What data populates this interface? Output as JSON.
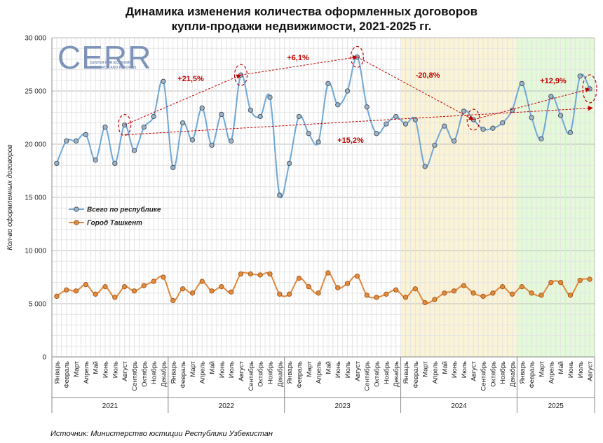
{
  "title_line1": "Динамика изменения количества оформленных договоров",
  "title_line2": "купли-продажи недвижимости, 2021-2025 гг.",
  "source": "Источник: Министерство юстиции Республики Узбекистан",
  "logo": {
    "text": "CERR",
    "subtitle_1": "CENTER FOR ECONOMIC",
    "subtitle_2": "RESEARCH AND REFORMS"
  },
  "colors": {
    "republic_line": "#6fa8d6",
    "republic_marker": "#9db3c4",
    "tashkent": "#e08a3c",
    "annotation": "#c00000",
    "band_2024": "#fbf3d5",
    "band_2025": "#e3f9d8"
  },
  "chart_data": {
    "type": "line",
    "ylabel": "Кол-во оформленных договоров",
    "ylim": [
      0,
      30000
    ],
    "yticks": [
      "0",
      "5 000",
      "10 000",
      "15 000",
      "20 000",
      "25 000",
      "30 000"
    ],
    "grid": true,
    "legend_position": "middle-left",
    "categories": [
      "Январь",
      "Февраль",
      "Март",
      "Апрель",
      "Май",
      "Июнь",
      "Июль",
      "Август",
      "Сентябрь",
      "Октябрь",
      "Ноябрь",
      "Декабрь",
      "Январь",
      "Февраль",
      "Март",
      "Апрель",
      "Май",
      "Июнь",
      "Июль",
      "Август",
      "Сентябрь",
      "Октябрь",
      "Ноябрь",
      "Декабрь",
      "Январь",
      "Февраль",
      "Март",
      "Апрель",
      "Май",
      "Июнь",
      "Июль",
      "Август",
      "Сентябрь",
      "Октябрь",
      "Ноябрь",
      "Декабрь",
      "Январь",
      "Февраль",
      "Март",
      "Апрель",
      "Май",
      "Июнь",
      "Июль",
      "Август",
      "Сентябрь",
      "Октябрь",
      "Ноябрь",
      "Декабрь",
      "Январь",
      "Февраль",
      "Март",
      "Апрель",
      "Май",
      "Июнь",
      "Июль",
      "Август"
    ],
    "years": [
      {
        "label": "2021",
        "count": 12
      },
      {
        "label": "2022",
        "count": 12
      },
      {
        "label": "2023",
        "count": 12
      },
      {
        "label": "2024",
        "count": 12
      },
      {
        "label": "2025",
        "count": 8
      }
    ],
    "series": [
      {
        "name": "Всего по республике",
        "values": [
          18200,
          20300,
          20300,
          20900,
          18500,
          21600,
          18200,
          21800,
          19400,
          21600,
          22600,
          25900,
          17800,
          22000,
          20400,
          23400,
          19900,
          22800,
          20300,
          26500,
          23200,
          22600,
          24400,
          15200,
          18200,
          22600,
          21000,
          20200,
          25700,
          23700,
          25000,
          28200,
          23500,
          21000,
          21900,
          22600,
          21900,
          22300,
          17900,
          19900,
          21700,
          20300,
          23100,
          22300,
          21400,
          21500,
          22000,
          23200,
          25700,
          22500,
          20500,
          24500,
          22700,
          21100,
          26400,
          25200
        ]
      },
      {
        "name": "Город Ташкент",
        "values": [
          5700,
          6300,
          6200,
          6800,
          5900,
          6600,
          5600,
          6600,
          6200,
          6700,
          7100,
          7500,
          5300,
          6400,
          6000,
          7100,
          6200,
          6600,
          6100,
          7800,
          7800,
          7700,
          7800,
          5900,
          5900,
          7400,
          6600,
          6000,
          7900,
          6500,
          6900,
          7600,
          5800,
          5600,
          5900,
          6300,
          5600,
          6400,
          5100,
          5400,
          6000,
          6200,
          6700,
          6000,
          5700,
          6000,
          6600,
          5900,
          6600,
          6000,
          5800,
          7000,
          7000,
          5800,
          7200,
          7300
        ]
      }
    ],
    "annotations": [
      {
        "text": "+21,5%"
      },
      {
        "text": "+6,1%"
      },
      {
        "text": "-20,8%"
      },
      {
        "text": "+12,9%"
      },
      {
        "text": "+15,2%"
      }
    ]
  }
}
